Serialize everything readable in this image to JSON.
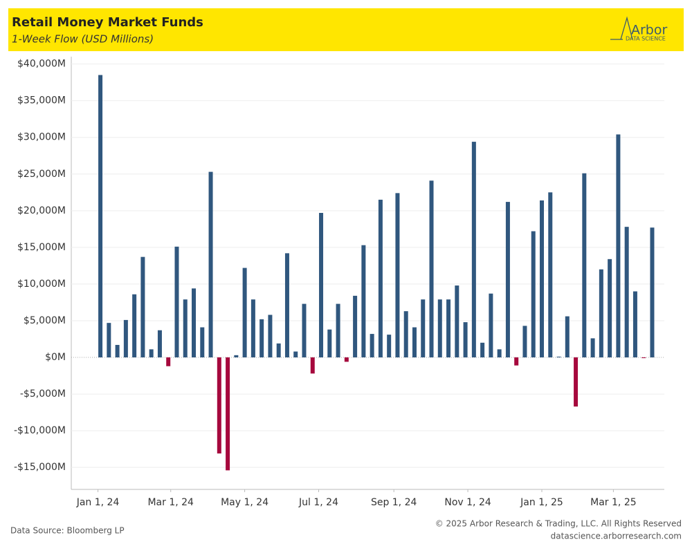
{
  "chart_data": {
    "type": "bar",
    "title": "Retail Money Market Funds",
    "subtitle": "1-Week Flow (USD Millions)",
    "x": [
      "2024-01-03",
      "2024-01-10",
      "2024-01-17",
      "2024-01-24",
      "2024-01-31",
      "2024-02-07",
      "2024-02-14",
      "2024-02-21",
      "2024-02-28",
      "2024-03-06",
      "2024-03-13",
      "2024-03-20",
      "2024-03-27",
      "2024-04-03",
      "2024-04-10",
      "2024-04-17",
      "2024-04-24",
      "2024-05-01",
      "2024-05-08",
      "2024-05-15",
      "2024-05-22",
      "2024-05-29",
      "2024-06-05",
      "2024-06-12",
      "2024-06-19",
      "2024-06-26",
      "2024-07-03",
      "2024-07-10",
      "2024-07-17",
      "2024-07-24",
      "2024-07-31",
      "2024-08-07",
      "2024-08-14",
      "2024-08-21",
      "2024-08-28",
      "2024-09-04",
      "2024-09-11",
      "2024-09-18",
      "2024-09-25",
      "2024-10-02",
      "2024-10-09",
      "2024-10-16",
      "2024-10-23",
      "2024-10-30",
      "2024-11-06",
      "2024-11-13",
      "2024-11-20",
      "2024-11-27",
      "2024-12-04",
      "2024-12-11",
      "2024-12-18",
      "2024-12-25",
      "2025-01-01",
      "2025-01-08",
      "2025-01-15",
      "2025-01-22",
      "2025-01-29",
      "2025-02-05",
      "2025-02-12",
      "2025-02-19",
      "2025-02-26",
      "2025-03-05",
      "2025-03-12",
      "2025-03-19",
      "2025-03-26",
      "2025-04-02"
    ],
    "values": [
      38500,
      4700,
      1700,
      5100,
      8600,
      13700,
      1100,
      3700,
      -1200,
      15100,
      7900,
      9400,
      4100,
      25300,
      -13100,
      -15400,
      300,
      12200,
      7900,
      5200,
      5800,
      1900,
      14200,
      800,
      7300,
      -2200,
      19700,
      3800,
      7300,
      -600,
      8400,
      15300,
      3200,
      21500,
      3100,
      22400,
      6300,
      4100,
      7900,
      24100,
      7900,
      7900,
      9800,
      4800,
      29400,
      2000,
      8700,
      1100,
      21200,
      -1100,
      4300,
      17200,
      21400,
      22500,
      100,
      5600,
      -6700,
      25100,
      2600,
      12000,
      13400,
      30400,
      17800,
      9000,
      -100,
      17700
    ],
    "positive_color": "#30577e",
    "negative_color": "#a6093d",
    "xlim": [
      "2023-12-10",
      "2025-04-12"
    ],
    "xticks": [
      {
        "value": "2024-01-01",
        "label": "Jan 1, 24"
      },
      {
        "value": "2024-03-01",
        "label": "Mar 1, 24"
      },
      {
        "value": "2024-05-01",
        "label": "May 1, 24"
      },
      {
        "value": "2024-07-01",
        "label": "Jul 1, 24"
      },
      {
        "value": "2024-09-01",
        "label": "Sep 1, 24"
      },
      {
        "value": "2024-11-01",
        "label": "Nov 1, 24"
      },
      {
        "value": "2025-01-01",
        "label": "Jan 1, 25"
      },
      {
        "value": "2025-03-01",
        "label": "Mar 1, 25"
      }
    ],
    "ylim": [
      -18000,
      41000
    ],
    "yticks": [
      {
        "value": -15000,
        "label": "-$15,000M"
      },
      {
        "value": -10000,
        "label": "-$10,000M"
      },
      {
        "value": -5000,
        "label": "-$5,000M"
      },
      {
        "value": 0,
        "label": "$0M"
      },
      {
        "value": 5000,
        "label": "$5,000M"
      },
      {
        "value": 10000,
        "label": "$10,000M"
      },
      {
        "value": 15000,
        "label": "$15,000M"
      },
      {
        "value": 20000,
        "label": "$20,000M"
      },
      {
        "value": 25000,
        "label": "$25,000M"
      },
      {
        "value": 30000,
        "label": "$30,000M"
      },
      {
        "value": 35000,
        "label": "$35,000M"
      },
      {
        "value": 40000,
        "label": "$40,000M"
      }
    ],
    "grid": true
  },
  "logo": {
    "name": "Arbor",
    "tagline": "DATA SCIENCE"
  },
  "footer": {
    "source": "Data Source: Bloomberg LP",
    "copyright": "© 2025 Arbor Research & Trading, LLC. All Rights Reserved",
    "url": "datascience.arborresearch.com"
  }
}
